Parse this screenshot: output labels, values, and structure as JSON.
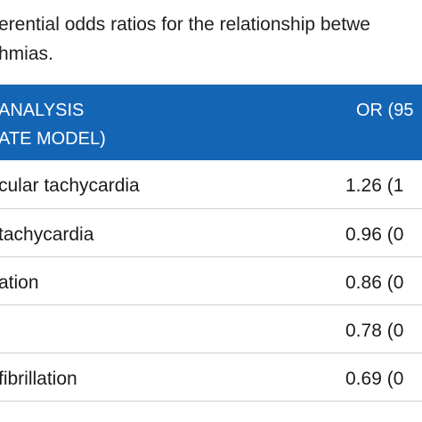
{
  "caption": {
    "line1": "erential odds ratios for the relationship betwe",
    "line2": "hmias."
  },
  "table": {
    "header": {
      "col1_line1": "ANALYSIS",
      "col1_line2": "ATE MODEL)",
      "col2": "OR (95"
    },
    "rows": [
      {
        "label": "cular tachycardia",
        "or": "1.26 (1"
      },
      {
        "label": "tachycardia",
        "or": "0.96 (0"
      },
      {
        "label": "ation",
        "or": "0.86 (0"
      },
      {
        "label": "",
        "or": "0.78 (0"
      },
      {
        "label": "fibrillation",
        "or": "0.69 (0"
      }
    ]
  },
  "colors": {
    "header_bg": "#1565b5",
    "header_text": "#ffffff",
    "row_divider": "#cfcfcf"
  }
}
